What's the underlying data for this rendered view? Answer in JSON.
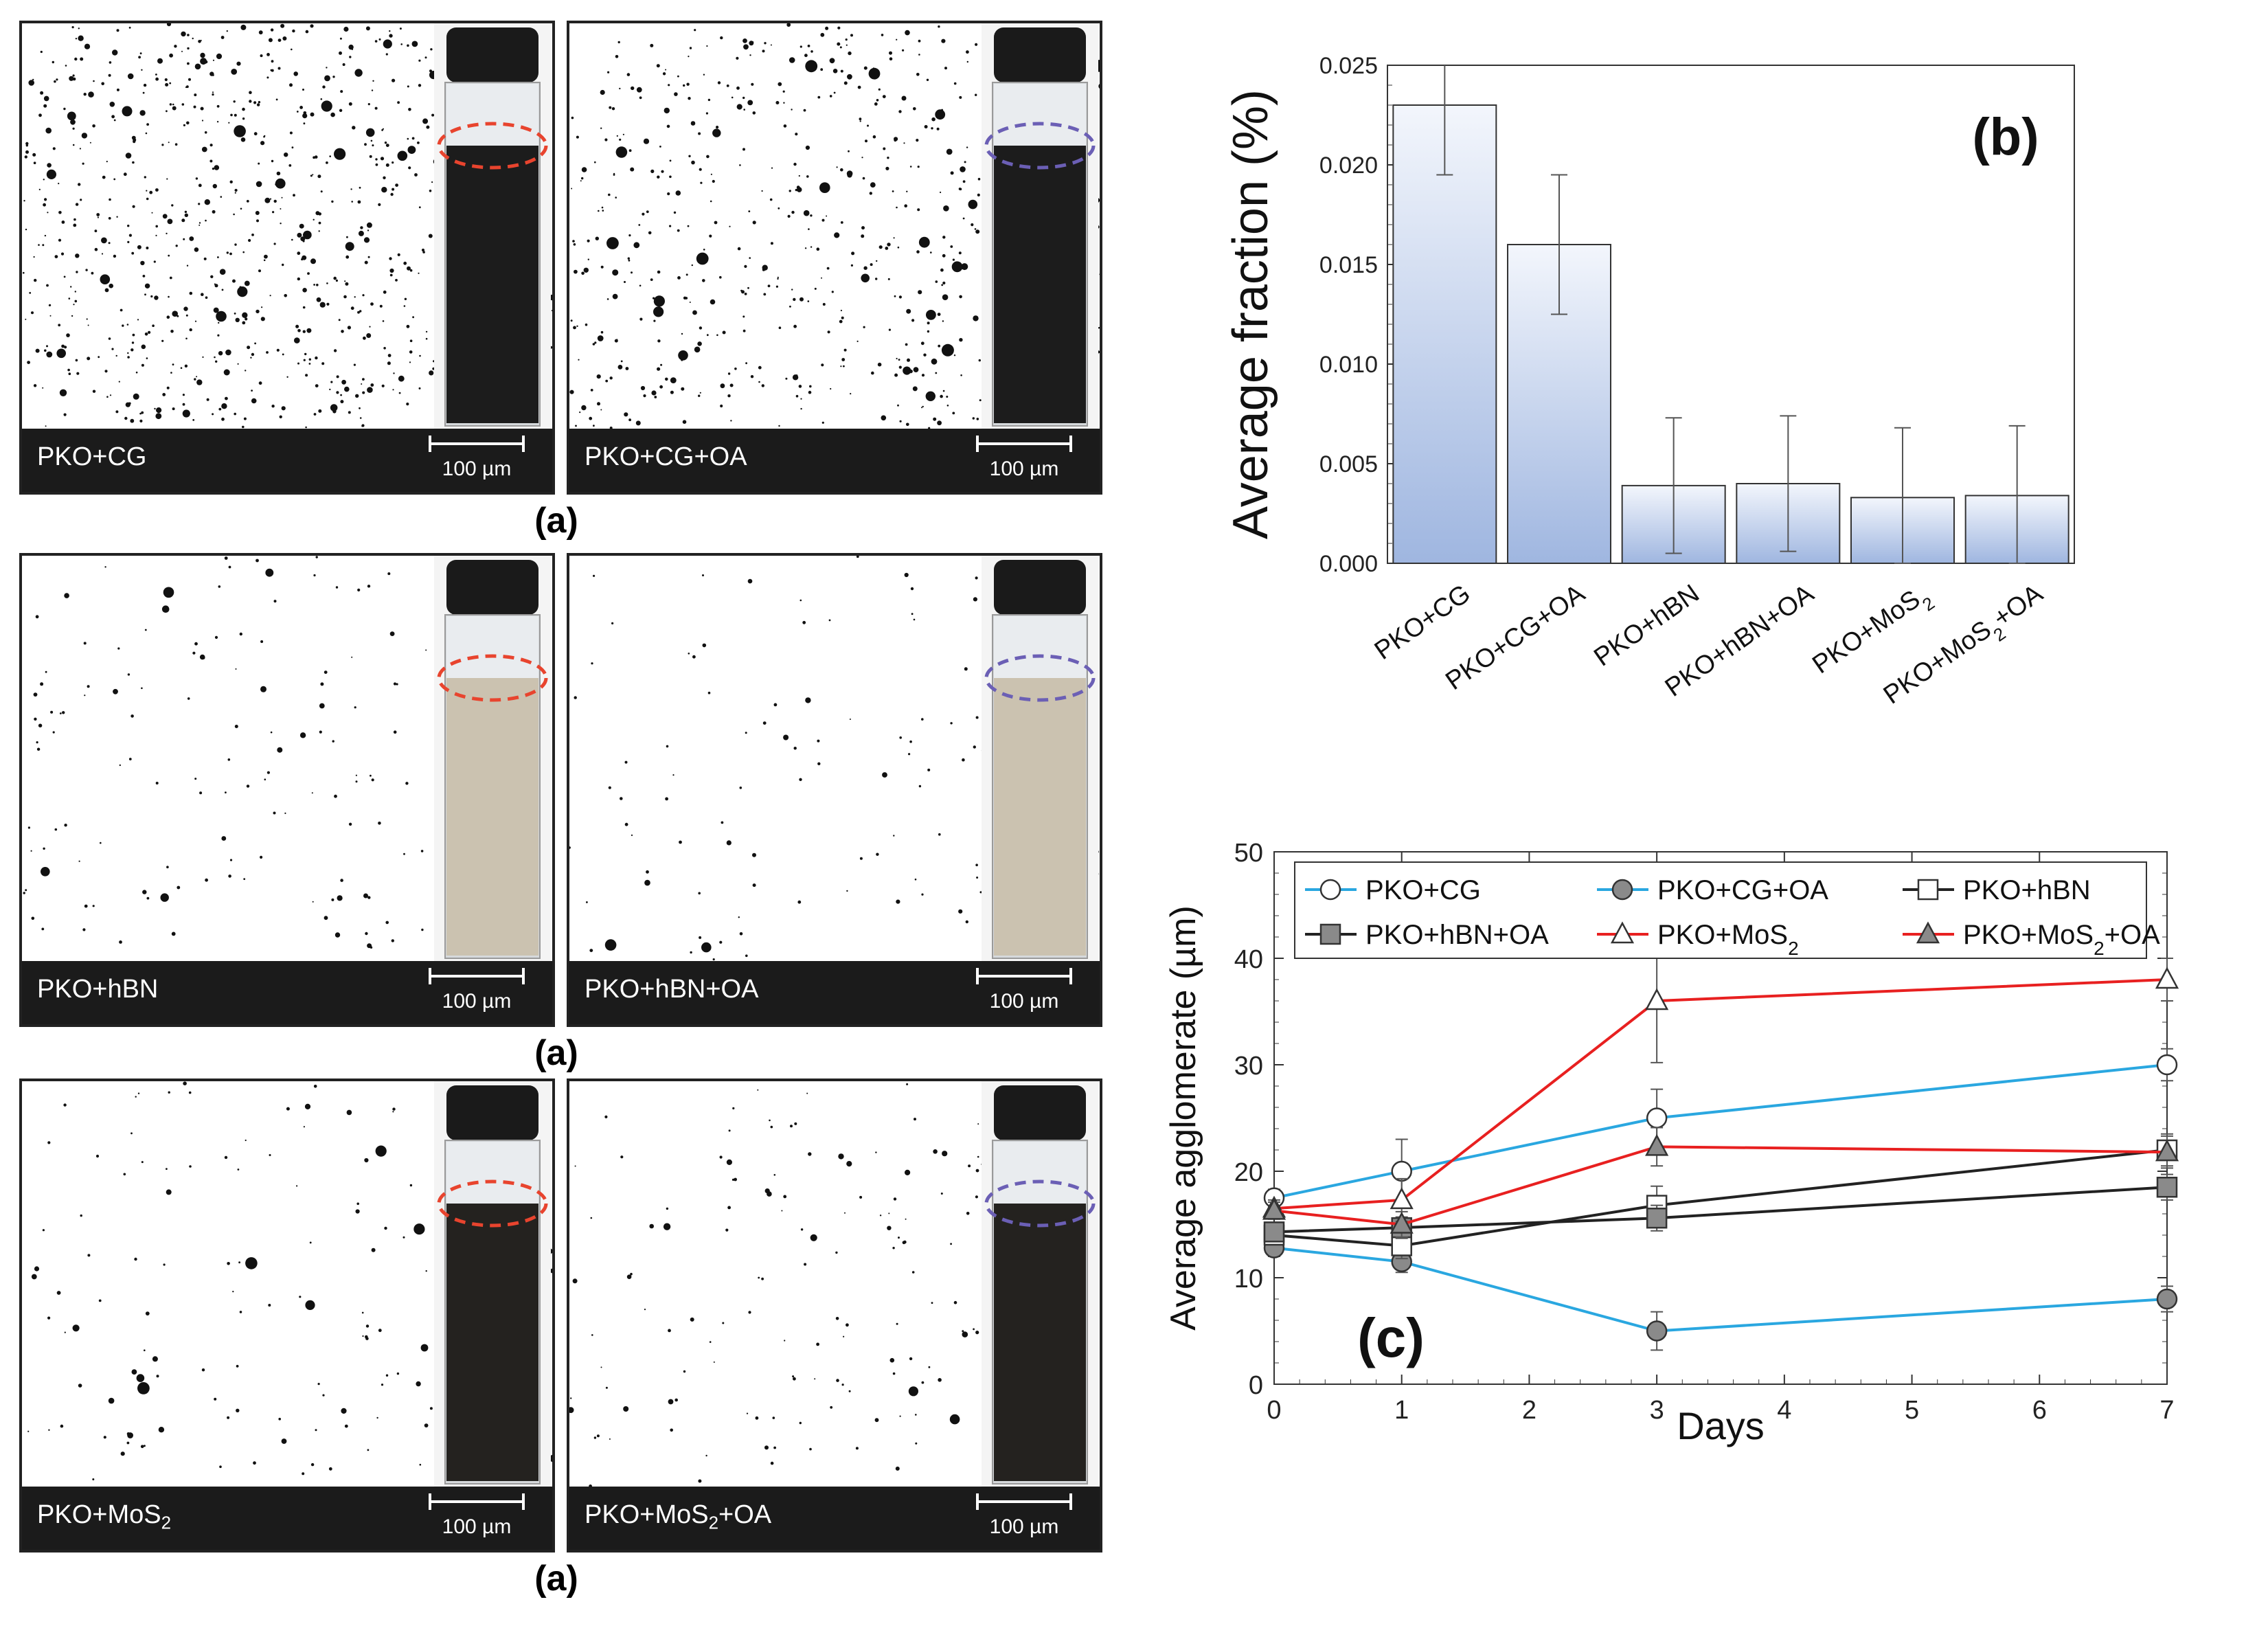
{
  "panel_a": {
    "images": [
      {
        "caption": "PKO+CG",
        "scale": "100 µm",
        "ring_color": "#e8442e",
        "liquid": "#1c1c1c",
        "density": 900
      },
      {
        "caption": "PKO+CG+OA",
        "scale": "100 µm",
        "ring_color": "#6b5fb5",
        "liquid": "#1c1c1c",
        "density": 650
      },
      {
        "caption": "PKO+hBN",
        "scale": "100 µm",
        "ring_color": "#e8442e",
        "liquid": "#cbc2b0",
        "density": 170
      },
      {
        "caption": "PKO+hBN+OA",
        "scale": "100 µm",
        "ring_color": "#6b5fb5",
        "liquid": "#cbc2b0",
        "density": 120
      },
      {
        "caption": "PKO+MoS",
        "caption_sub": "2",
        "caption_tail": "",
        "scale": "100 µm",
        "ring_color": "#e8442e",
        "liquid": "#24221f",
        "density": 150
      },
      {
        "caption": "PKO+MoS",
        "caption_sub": "2",
        "caption_tail": "+OA",
        "scale": "100 µm",
        "ring_color": "#6b5fb5",
        "liquid": "#24221f",
        "density": 170
      }
    ],
    "labels": [
      "(a)",
      "(a)",
      "(a)"
    ]
  },
  "chart_data": [
    {
      "type": "bar",
      "panel_label": "(b)",
      "ylabel": "Average fraction (%)",
      "ylim": [
        0,
        0.025
      ],
      "yticks": [
        "0.000",
        "0.005",
        "0.010",
        "0.015",
        "0.020",
        "0.025"
      ],
      "categories": [
        {
          "main": "PKO+CG",
          "sub": "",
          "tail": ""
        },
        {
          "main": "PKO+CG+OA",
          "sub": "",
          "tail": ""
        },
        {
          "main": "PKO+hBN",
          "sub": "",
          "tail": ""
        },
        {
          "main": "PKO+hBN+OA",
          "sub": "",
          "tail": ""
        },
        {
          "main": "PKO+MoS",
          "sub": "2",
          "tail": ""
        },
        {
          "main": "PKO+MoS",
          "sub": "2",
          "tail": "+OA"
        }
      ],
      "values": [
        0.023,
        0.016,
        0.0039,
        0.004,
        0.0033,
        0.0034
      ],
      "errors": [
        0.0035,
        0.0035,
        0.0034,
        0.0034,
        0.0035,
        0.0035
      ],
      "bar_color_top": "#f3f6fc",
      "bar_color_bottom": "#9fb6e0"
    },
    {
      "type": "line",
      "panel_label": "(c)",
      "xlabel": "Days",
      "ylabel": "Average agglomerate (µm)",
      "xlim": [
        0,
        7
      ],
      "ylim": [
        0,
        50
      ],
      "xticks": [
        0,
        1,
        2,
        3,
        4,
        5,
        6,
        7
      ],
      "yticks": [
        0,
        10,
        20,
        30,
        40,
        50
      ],
      "x": [
        0,
        1,
        3,
        7
      ],
      "legend_position": "top",
      "series": [
        {
          "name": "PKO+CG",
          "sub": "",
          "tail": "",
          "color": "#2aa7e0",
          "marker": "circle",
          "fill": "#ffffff",
          "values": [
            17.5,
            20.0,
            25.0,
            30.0
          ],
          "errors": [
            0.8,
            3.0,
            2.7,
            1.5
          ]
        },
        {
          "name": "PKO+CG+OA",
          "sub": "",
          "tail": "",
          "color": "#2aa7e0",
          "marker": "circle",
          "fill": "#8a8a8a",
          "values": [
            12.8,
            11.5,
            5.0,
            8.0
          ],
          "errors": [
            0.8,
            1.0,
            1.8,
            1.2
          ]
        },
        {
          "name": "PKO+hBN",
          "sub": "",
          "tail": "",
          "color": "#222222",
          "marker": "square",
          "fill": "#ffffff",
          "values": [
            14.0,
            13.0,
            16.8,
            22.0
          ],
          "errors": [
            0.8,
            1.2,
            1.8,
            1.5
          ]
        },
        {
          "name": "PKO+hBN+OA",
          "sub": "",
          "tail": "",
          "color": "#222222",
          "marker": "square",
          "fill": "#8a8a8a",
          "values": [
            14.3,
            14.7,
            15.6,
            18.5
          ],
          "errors": [
            0.8,
            1.0,
            1.2,
            1.2
          ]
        },
        {
          "name": "PKO+MoS",
          "sub": "2",
          "tail": "",
          "color": "#e82020",
          "marker": "triangle",
          "fill": "#ffffff",
          "values": [
            16.5,
            17.3,
            36.0,
            38.0
          ],
          "errors": [
            0.8,
            2.0,
            5.8,
            2.0
          ]
        },
        {
          "name": "PKO+MoS",
          "sub": "2",
          "tail": "+OA",
          "color": "#e82020",
          "marker": "triangle",
          "fill": "#8a8a8a",
          "values": [
            16.3,
            15.0,
            22.3,
            21.8
          ],
          "errors": [
            0.8,
            1.2,
            1.8,
            1.5
          ]
        }
      ]
    }
  ]
}
